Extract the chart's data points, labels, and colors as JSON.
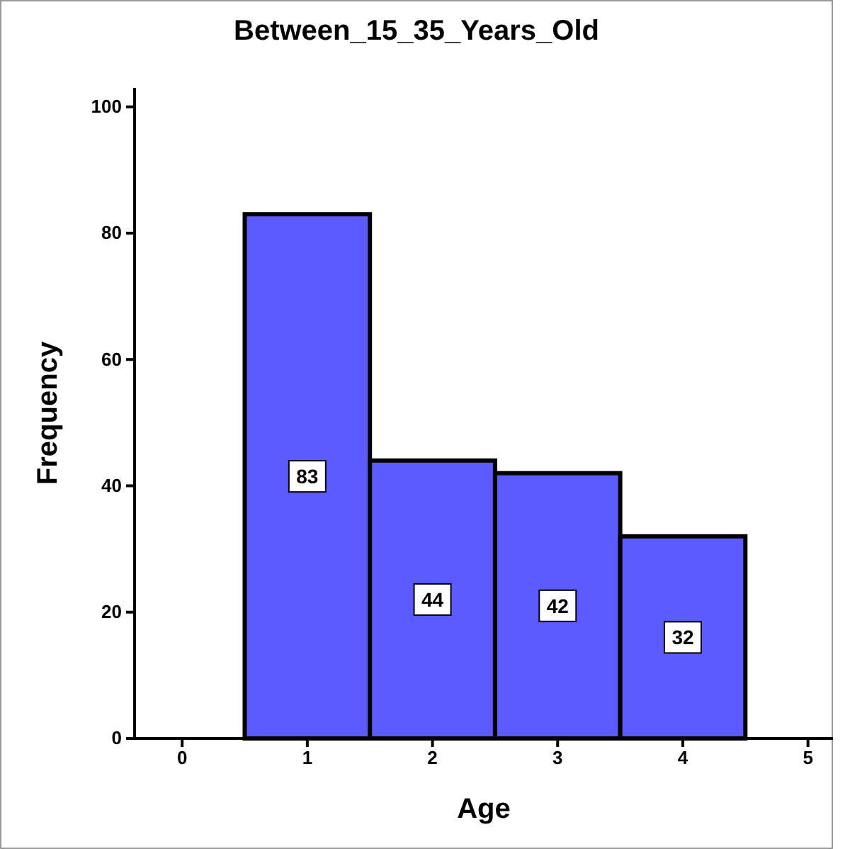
{
  "chart_data": {
    "type": "histogram",
    "title": "Between_15_35_Years_Old",
    "xlabel": "Age",
    "ylabel": "Frequency",
    "bins": [
      0.5,
      1.5,
      2.5,
      3.5,
      4.5
    ],
    "values": [
      83,
      44,
      42,
      32
    ],
    "color": "#5b5bff",
    "xlim": [
      -0.38,
      5.2
    ],
    "xticks": [
      0,
      1,
      2,
      3,
      4,
      5
    ],
    "ylim": [
      0,
      103
    ],
    "yticks": [
      0,
      20,
      40,
      60,
      80,
      100
    ],
    "data_labels": true
  }
}
